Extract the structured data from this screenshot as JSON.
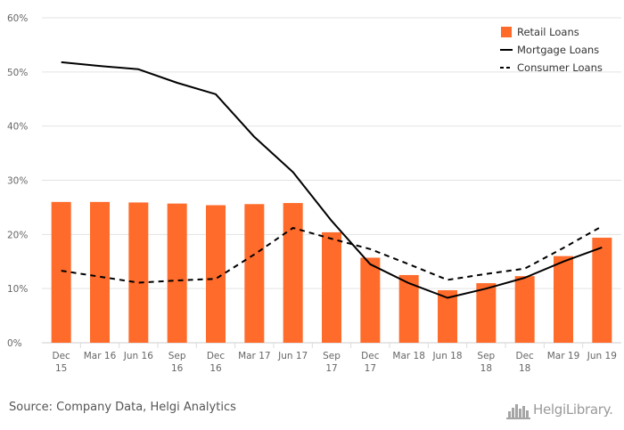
{
  "chart_data": {
    "type": "bar+line",
    "categories": [
      "Dec 15",
      "Mar 16",
      "Jun 16",
      "Sep 16",
      "Dec 16",
      "Mar 17",
      "Jun 17",
      "Sep 17",
      "Dec 17",
      "Mar 18",
      "Jun 18",
      "Sep 18",
      "Dec 18",
      "Mar 19",
      "Jun 19"
    ],
    "category_lines": [
      [
        "Dec",
        "15"
      ],
      [
        "Mar 16"
      ],
      [
        "Jun 16"
      ],
      [
        "Sep",
        "16"
      ],
      [
        "Dec",
        "16"
      ],
      [
        "Mar 17"
      ],
      [
        "Jun 17"
      ],
      [
        "Sep",
        "17"
      ],
      [
        "Dec",
        "17"
      ],
      [
        "Mar 18"
      ],
      [
        "Jun 18"
      ],
      [
        "Sep",
        "18"
      ],
      [
        "Dec",
        "18"
      ],
      [
        "Mar 19"
      ],
      [
        "Jun 19"
      ]
    ],
    "series": [
      {
        "name": "Retail Loans",
        "kind": "bar",
        "color": "#ff6b2b",
        "values": [
          26.0,
          26.0,
          25.9,
          25.7,
          25.4,
          25.6,
          25.8,
          20.4,
          15.7,
          12.5,
          9.7,
          11.0,
          12.3,
          16.0,
          19.4
        ]
      },
      {
        "name": "Mortgage Loans",
        "kind": "line",
        "style": "solid",
        "color": "#000000",
        "values": [
          51.8,
          51.1,
          50.5,
          48.0,
          45.9,
          38.0,
          31.5,
          22.5,
          14.5,
          11.0,
          8.3,
          10.0,
          12.0,
          15.0,
          17.6
        ]
      },
      {
        "name": "Consumer Loans",
        "kind": "line",
        "style": "dashed",
        "color": "#000000",
        "values": [
          13.3,
          12.2,
          11.1,
          11.5,
          11.8,
          16.3,
          21.2,
          19.2,
          17.3,
          14.5,
          11.6,
          12.7,
          13.7,
          17.5,
          21.5
        ]
      }
    ],
    "ylim": [
      0,
      60
    ],
    "yticks": [
      "0%",
      "10%",
      "20%",
      "30%",
      "40%",
      "50%",
      "60%"
    ],
    "ytick_values": [
      0,
      10,
      20,
      30,
      40,
      50,
      60
    ],
    "grid": true,
    "legend_position": "top-right",
    "title": "",
    "xlabel": "",
    "ylabel": ""
  },
  "footer": {
    "source": "Source: Company Data, Helgi Analytics",
    "logo_text": "HelgiLibrary.",
    "logo_icon": "skyline-icon"
  }
}
